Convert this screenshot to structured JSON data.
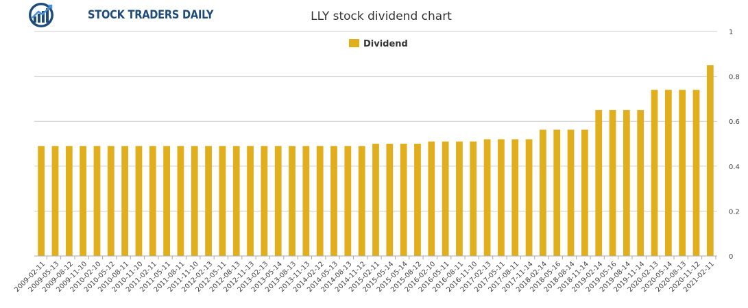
{
  "brand": {
    "name": "STOCK TRADERS DAILY"
  },
  "chart_data": {
    "type": "bar",
    "title": "LLY stock dividend chart",
    "legend": {
      "position": "top-center",
      "entries": [
        "Dividend"
      ]
    },
    "colors": {
      "bar": "#e1ae1d",
      "grid": "#cccccc",
      "axis": "#aaaaaa"
    },
    "ylim": [
      0,
      1
    ],
    "yticks": [
      0,
      0.2,
      0.4,
      0.6,
      0.8,
      1
    ],
    "ytick_labels": [
      "0",
      "0.2",
      "0.4",
      "0.6",
      "0.8",
      "1"
    ],
    "grid": true,
    "xlabel": "",
    "ylabel": "",
    "categories": [
      "2009-02-11",
      "2009-05-13",
      "2009-08-12",
      "2009-11-10",
      "2010-02-10",
      "2010-05-12",
      "2010-08-11",
      "2010-11-10",
      "2011-02-11",
      "2011-05-11",
      "2011-08-11",
      "2011-11-10",
      "2012-02-13",
      "2012-05-11",
      "2012-08-13",
      "2012-11-13",
      "2013-02-13",
      "2013-05-14",
      "2013-08-13",
      "2013-11-13",
      "2014-02-12",
      "2014-05-13",
      "2014-08-13",
      "2014-11-12",
      "2015-02-11",
      "2015-05-14",
      "2015-05-14",
      "2015-08-12",
      "2016-02-10",
      "2016-05-11",
      "2016-08-11",
      "2016-11-10",
      "2017-02-13",
      "2017-05-11",
      "2017-08-11",
      "2017-11-14",
      "2018-02-14",
      "2018-05-16",
      "2018-08-14",
      "2018-11-14",
      "2019-02-14",
      "2019-05-16",
      "2019-08-14",
      "2019-11-14",
      "2020-02-13",
      "2020-05-14",
      "2020-08-13",
      "2020-11-12",
      "2021-02-11"
    ],
    "series": [
      {
        "name": "Dividend",
        "values": [
          0.49,
          0.49,
          0.49,
          0.49,
          0.49,
          0.49,
          0.49,
          0.49,
          0.49,
          0.49,
          0.49,
          0.49,
          0.49,
          0.49,
          0.49,
          0.49,
          0.49,
          0.49,
          0.49,
          0.49,
          0.49,
          0.49,
          0.49,
          0.49,
          0.5,
          0.5,
          0.5,
          0.5,
          0.51,
          0.51,
          0.51,
          0.51,
          0.52,
          0.52,
          0.52,
          0.52,
          0.5625,
          0.5625,
          0.5625,
          0.5625,
          0.65,
          0.65,
          0.65,
          0.65,
          0.74,
          0.74,
          0.74,
          0.74,
          0.85
        ]
      }
    ]
  }
}
